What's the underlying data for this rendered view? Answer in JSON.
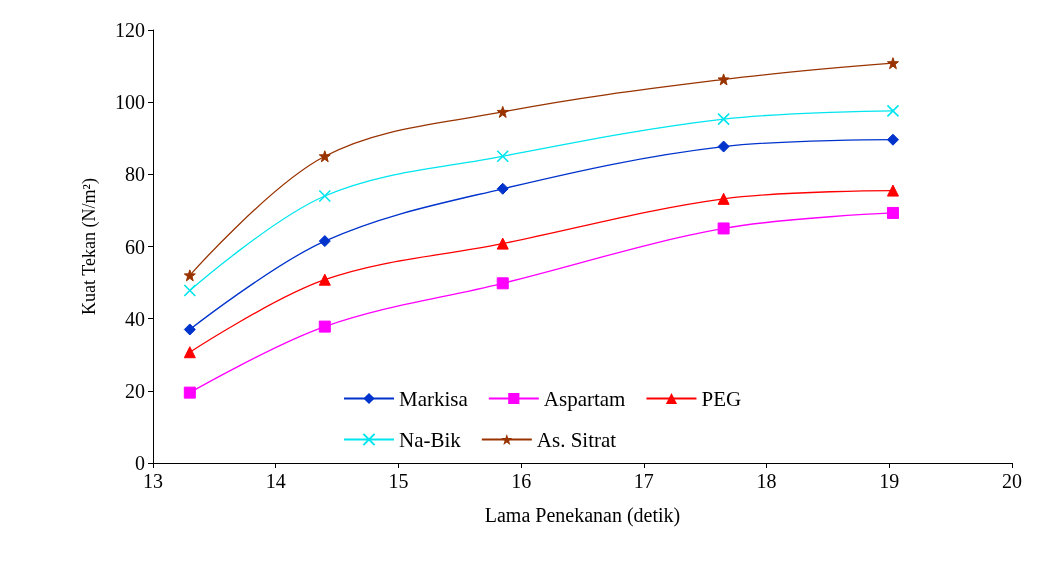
{
  "chart_data": {
    "type": "line",
    "xlabel": "Lama Penekanan (detik)",
    "ylabel": "Kuat Tekan (N/m²)",
    "x": [
      13.3,
      14.4,
      15.85,
      17.65,
      19.03
    ],
    "xlim": [
      13,
      20
    ],
    "xticks": [
      13,
      14,
      15,
      16,
      17,
      18,
      19,
      20
    ],
    "ylim": [
      0,
      120
    ],
    "yticks": [
      0,
      20,
      40,
      60,
      80,
      100,
      120
    ],
    "grid": false,
    "legend": "bottom",
    "series": [
      {
        "name": "Markisa",
        "color": "#0033cc",
        "marker": "diamond",
        "values": [
          37,
          61.5,
          76,
          87.7,
          89.6
        ]
      },
      {
        "name": "Aspartam",
        "color": "#ff00ff",
        "marker": "square",
        "values": [
          19.5,
          37.8,
          49.8,
          65,
          69.3
        ]
      },
      {
        "name": "PEG",
        "color": "#ff0000",
        "marker": "triangle",
        "values": [
          30.7,
          50.8,
          60.8,
          73.2,
          75.5
        ]
      },
      {
        "name": "Na-Bik",
        "color": "#00e5ee",
        "marker": "cross",
        "values": [
          47.8,
          74,
          85,
          95.3,
          97.6
        ]
      },
      {
        "name": "As. Sitrat",
        "color": "#993300",
        "marker": "star",
        "values": [
          52,
          85,
          97.3,
          106.3,
          110.8
        ]
      }
    ]
  }
}
